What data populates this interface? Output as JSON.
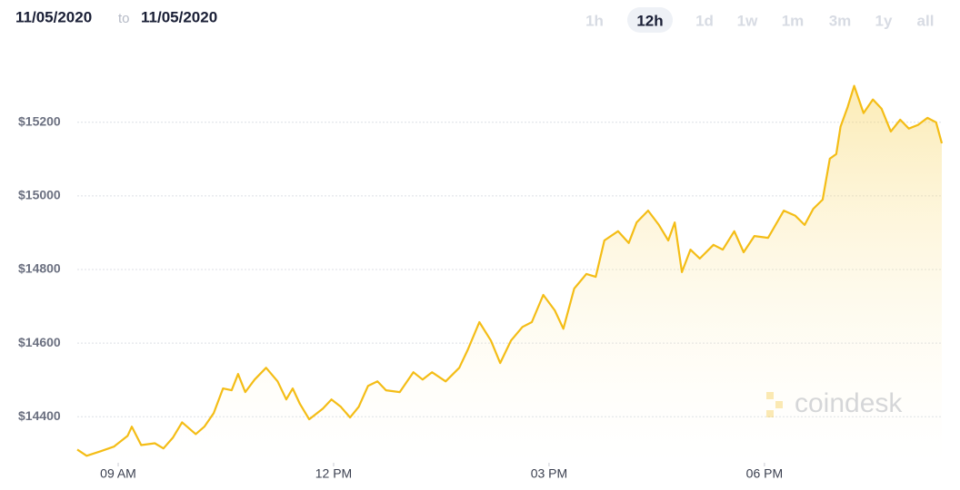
{
  "header": {
    "from": "11/05/2020",
    "to_label": "to",
    "to": "11/05/2020"
  },
  "range_options": [
    "1h",
    "12h",
    "1d",
    "1w",
    "1m",
    "3m",
    "1y",
    "all"
  ],
  "watermark": "coindesk",
  "chart_data": {
    "type": "area",
    "color": "#f4bd16",
    "grid": true,
    "x": [
      8.43,
      8.56,
      8.75,
      8.94,
      9.13,
      9.19,
      9.32,
      9.51,
      9.63,
      9.76,
      9.89,
      10.08,
      10.2,
      10.33,
      10.46,
      10.58,
      10.67,
      10.77,
      10.9,
      11.06,
      11.22,
      11.34,
      11.43,
      11.53,
      11.66,
      11.85,
      11.97,
      12.1,
      12.23,
      12.35,
      12.48,
      12.61,
      12.73,
      12.92,
      13.11,
      13.24,
      13.37,
      13.56,
      13.75,
      13.87,
      14.03,
      14.19,
      14.32,
      14.47,
      14.63,
      14.76,
      14.92,
      15.08,
      15.2,
      15.35,
      15.52,
      15.65,
      15.77,
      15.96,
      16.11,
      16.22,
      16.38,
      16.53,
      16.66,
      16.75,
      16.85,
      16.97,
      17.1,
      17.29,
      17.42,
      17.58,
      17.71,
      17.86,
      18.05,
      18.27,
      18.43,
      18.56,
      18.68,
      18.81,
      18.91,
      19,
      19.06,
      19.16,
      19.25,
      19.38,
      19.51,
      19.63,
      19.76,
      19.89,
      20.01,
      20.14,
      20.27,
      20.39,
      20.47
    ],
    "values": [
      14311,
      14294,
      14306,
      14319,
      14348,
      14373,
      14323,
      14328,
      14314,
      14343,
      14385,
      14353,
      14373,
      14410,
      14477,
      14472,
      14516,
      14467,
      14501,
      14533,
      14496,
      14447,
      14477,
      14435,
      14393,
      14422,
      14447,
      14427,
      14398,
      14427,
      14484,
      14496,
      14472,
      14467,
      14521,
      14501,
      14521,
      14496,
      14533,
      14583,
      14657,
      14607,
      14546,
      14607,
      14644,
      14657,
      14731,
      14689,
      14639,
      14748,
      14788,
      14780,
      14879,
      14904,
      14872,
      14928,
      14960,
      14921,
      14879,
      14928,
      14793,
      14854,
      14830,
      14867,
      14854,
      14904,
      14847,
      14891,
      14886,
      14960,
      14946,
      14921,
      14965,
      14990,
      15101,
      15114,
      15188,
      15242,
      15299,
      15225,
      15262,
      15237,
      15175,
      15207,
      15183,
      15193,
      15212,
      15200,
      15143
    ],
    "xlim": [
      8.43,
      20.47
    ],
    "xticks": [
      {
        "value": 9,
        "label": "09 AM"
      },
      {
        "value": 12,
        "label": "12 PM"
      },
      {
        "value": 15,
        "label": "03 PM"
      },
      {
        "value": 18,
        "label": "06 PM"
      }
    ],
    "ylim": [
      14275,
      15335
    ],
    "yticks": [
      {
        "value": 14400,
        "label": "$14400"
      },
      {
        "value": 14600,
        "label": "$14600"
      },
      {
        "value": 14800,
        "label": "$14800"
      },
      {
        "value": 15000,
        "label": "$15000"
      },
      {
        "value": 15200,
        "label": "$15200"
      }
    ]
  }
}
